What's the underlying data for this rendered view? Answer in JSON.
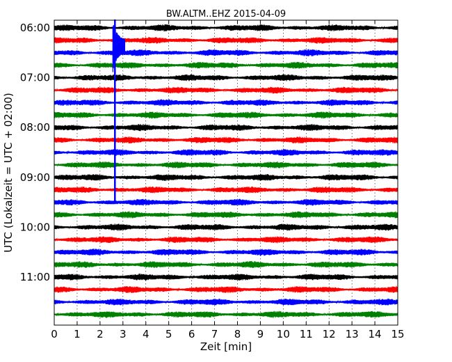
{
  "chart_data": {
    "type": "line",
    "title": "BW.ALTM..EHZ 2015-04-09",
    "xlabel": "Zeit  [min]",
    "ylabel": "UTC (Lokalzeit = UTC + 02:00)",
    "xlim": [
      0,
      15
    ],
    "x_ticks": [
      0,
      1,
      2,
      3,
      4,
      5,
      6,
      7,
      8,
      9,
      10,
      11,
      12,
      13,
      14,
      15
    ],
    "x_tick_labels": [
      "0",
      "1",
      "2",
      "3",
      "4",
      "5",
      "6",
      "7",
      "8",
      "9",
      "10",
      "11",
      "12",
      "13",
      "14",
      "15"
    ],
    "y_tick_labels": [
      {
        "label": "06:00",
        "trace": 0
      },
      {
        "label": "07:00",
        "trace": 4
      },
      {
        "label": "08:00",
        "trace": 8
      },
      {
        "label": "09:00",
        "trace": 12
      },
      {
        "label": "10:00",
        "trace": 16
      },
      {
        "label": "11:00",
        "trace": 20
      }
    ],
    "trace_interval_minutes": 15,
    "trace_colors": [
      "#000000",
      "#ff0000",
      "#0000ff",
      "#008000"
    ],
    "grid": true,
    "event": {
      "minute": 2.65,
      "first_trace": 0,
      "last_trace": 14
    }
  }
}
